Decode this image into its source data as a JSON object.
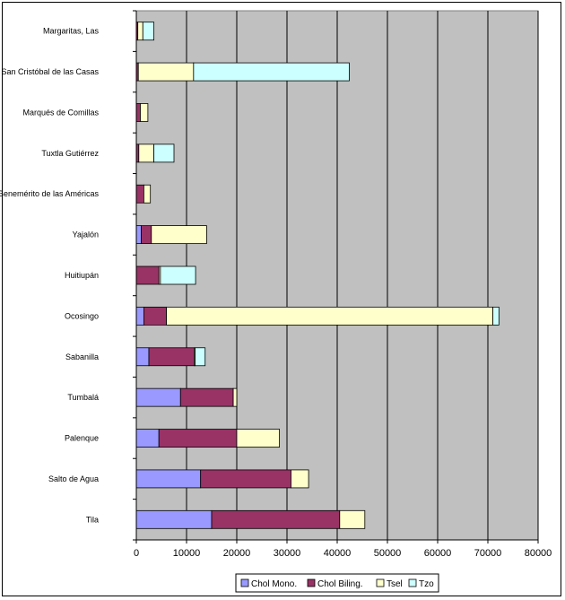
{
  "chart_data": {
    "type": "bar",
    "orientation": "horizontal",
    "stacked": true,
    "categories": [
      "Margaritas, Las",
      "San Cristóbal de las Casas",
      "Marqués de Comillas",
      "Tuxtla Gutiérrez",
      "Benemérito de las Américas",
      "Yajalón",
      "Huitiupán",
      "Ocosingo",
      "Sabanilla",
      "Tumbalá",
      "Palenque",
      "Salto de Agua",
      "Tila"
    ],
    "series": [
      {
        "name": "Chol Mono.",
        "color": "#9999ff",
        "values": [
          0,
          0,
          0,
          0,
          0,
          1000,
          0,
          1500,
          2500,
          8800,
          4500,
          12800,
          15000
        ]
      },
      {
        "name": "Chol Biling.",
        "color": "#993366",
        "values": [
          300,
          400,
          800,
          500,
          1500,
          2000,
          4500,
          4500,
          9000,
          10500,
          15500,
          18000,
          25500
        ]
      },
      {
        "name": "Tsel",
        "color": "#ffffcc",
        "values": [
          1000,
          11000,
          1500,
          3000,
          1300,
          11000,
          300,
          65000,
          200,
          700,
          8500,
          3500,
          5000
        ]
      },
      {
        "name": "Tzo",
        "color": "#ccffff",
        "values": [
          2200,
          31000,
          0,
          4000,
          0,
          0,
          7000,
          1200,
          2000,
          0,
          0,
          0,
          0
        ]
      }
    ],
    "xlim": [
      0,
      80000
    ],
    "xticks": [
      "0",
      "10000",
      "20000",
      "30000",
      "40000",
      "50000",
      "60000",
      "70000",
      "80000"
    ],
    "grid": true,
    "plot_background": "#c0c0c0",
    "legend_position": "bottom"
  }
}
